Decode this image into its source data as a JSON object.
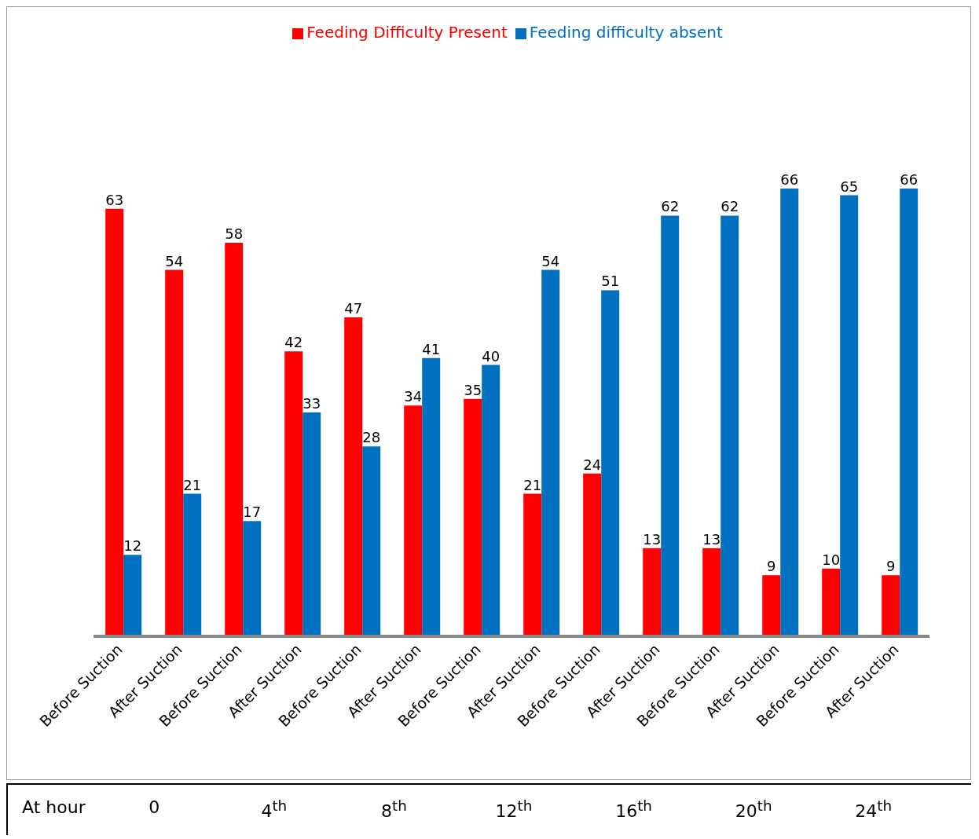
{
  "chart_data": {
    "type": "bar",
    "categories": [
      "Before Suction",
      "After Suction",
      "Before Suction",
      "After Suction",
      "Before Suction",
      "After Suction",
      "Before Suction",
      "After Suction",
      "Before Suction",
      "After Suction",
      "Before Suction",
      "After Suction",
      "Before Suction",
      "After Suction"
    ],
    "series": [
      {
        "name": "Feeding Difficulty Present",
        "color": "#ff0000",
        "values": [
          63,
          54,
          58,
          42,
          47,
          34,
          35,
          21,
          24,
          13,
          13,
          9,
          10,
          9
        ]
      },
      {
        "name": "Feeding difficulty absent",
        "color": "#0070c0",
        "values": [
          12,
          21,
          17,
          33,
          28,
          41,
          40,
          54,
          51,
          62,
          62,
          66,
          65,
          66
        ]
      }
    ],
    "data_labels": true,
    "grid": false,
    "legend": "top",
    "annotations": [
      "At hour",
      "0",
      "4$^{th}$",
      "8$^{th}$",
      "12$^{th}$",
      "16$^{th}$",
      "20$^{th}$",
      "24$^{th}$"
    ]
  }
}
